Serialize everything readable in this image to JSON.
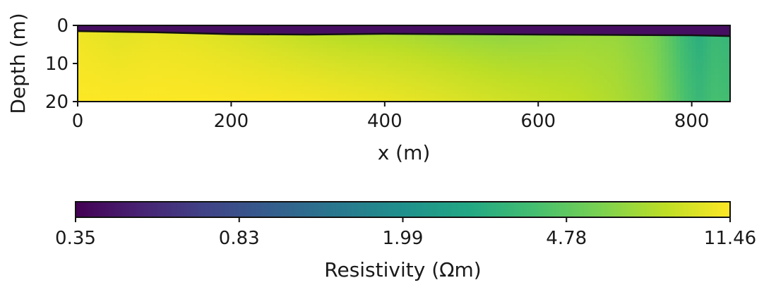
{
  "chart_data": {
    "type": "heatmap",
    "title": "",
    "xlabel": "x (m)",
    "ylabel": "Depth (m)",
    "xlim": [
      0,
      850
    ],
    "ylim": [
      20,
      0
    ],
    "x_ticks": [
      "0",
      "200",
      "400",
      "600",
      "800"
    ],
    "y_ticks": [
      "0",
      "10",
      "20"
    ],
    "colormap": "viridis",
    "colorbar": {
      "label": "Resistivity (Ωm)",
      "ticks": [
        "0.35",
        "0.83",
        "1.99",
        "4.78",
        "11.46"
      ],
      "range": [
        0.35,
        11.46
      ],
      "orientation": "horizontal",
      "placement": "bottom"
    },
    "surface_layer": {
      "description_value": 0.4,
      "depth_top": 0,
      "depth_bottom_profile": [
        {
          "x": 0,
          "depth": 1.5
        },
        {
          "x": 100,
          "depth": 1.8
        },
        {
          "x": 200,
          "depth": 2.3
        },
        {
          "x": 300,
          "depth": 2.4
        },
        {
          "x": 400,
          "depth": 2.2
        },
        {
          "x": 500,
          "depth": 2.3
        },
        {
          "x": 600,
          "depth": 2.4
        },
        {
          "x": 700,
          "depth": 2.5
        },
        {
          "x": 800,
          "depth": 2.6
        },
        {
          "x": 850,
          "depth": 2.8
        }
      ]
    },
    "resistivity_profile": {
      "x": [
        0,
        50,
        100,
        150,
        200,
        250,
        300,
        350,
        400,
        450,
        500,
        550,
        600,
        650,
        700,
        750,
        790,
        810,
        830,
        850
      ],
      "shallow": [
        10.5,
        9.5,
        10.0,
        9.6,
        9.0,
        8.2,
        7.5,
        7.0,
        6.8,
        6.4,
        6.0,
        5.8,
        6.0,
        6.4,
        6.5,
        5.6,
        3.6,
        3.0,
        3.6,
        3.4
      ],
      "deep": [
        11.4,
        11.4,
        11.4,
        11.4,
        11.3,
        11.2,
        11.0,
        10.7,
        10.4,
        10.0,
        9.5,
        9.0,
        8.6,
        8.2,
        7.5,
        6.3,
        4.2,
        3.6,
        4.1,
        3.9
      ]
    }
  }
}
